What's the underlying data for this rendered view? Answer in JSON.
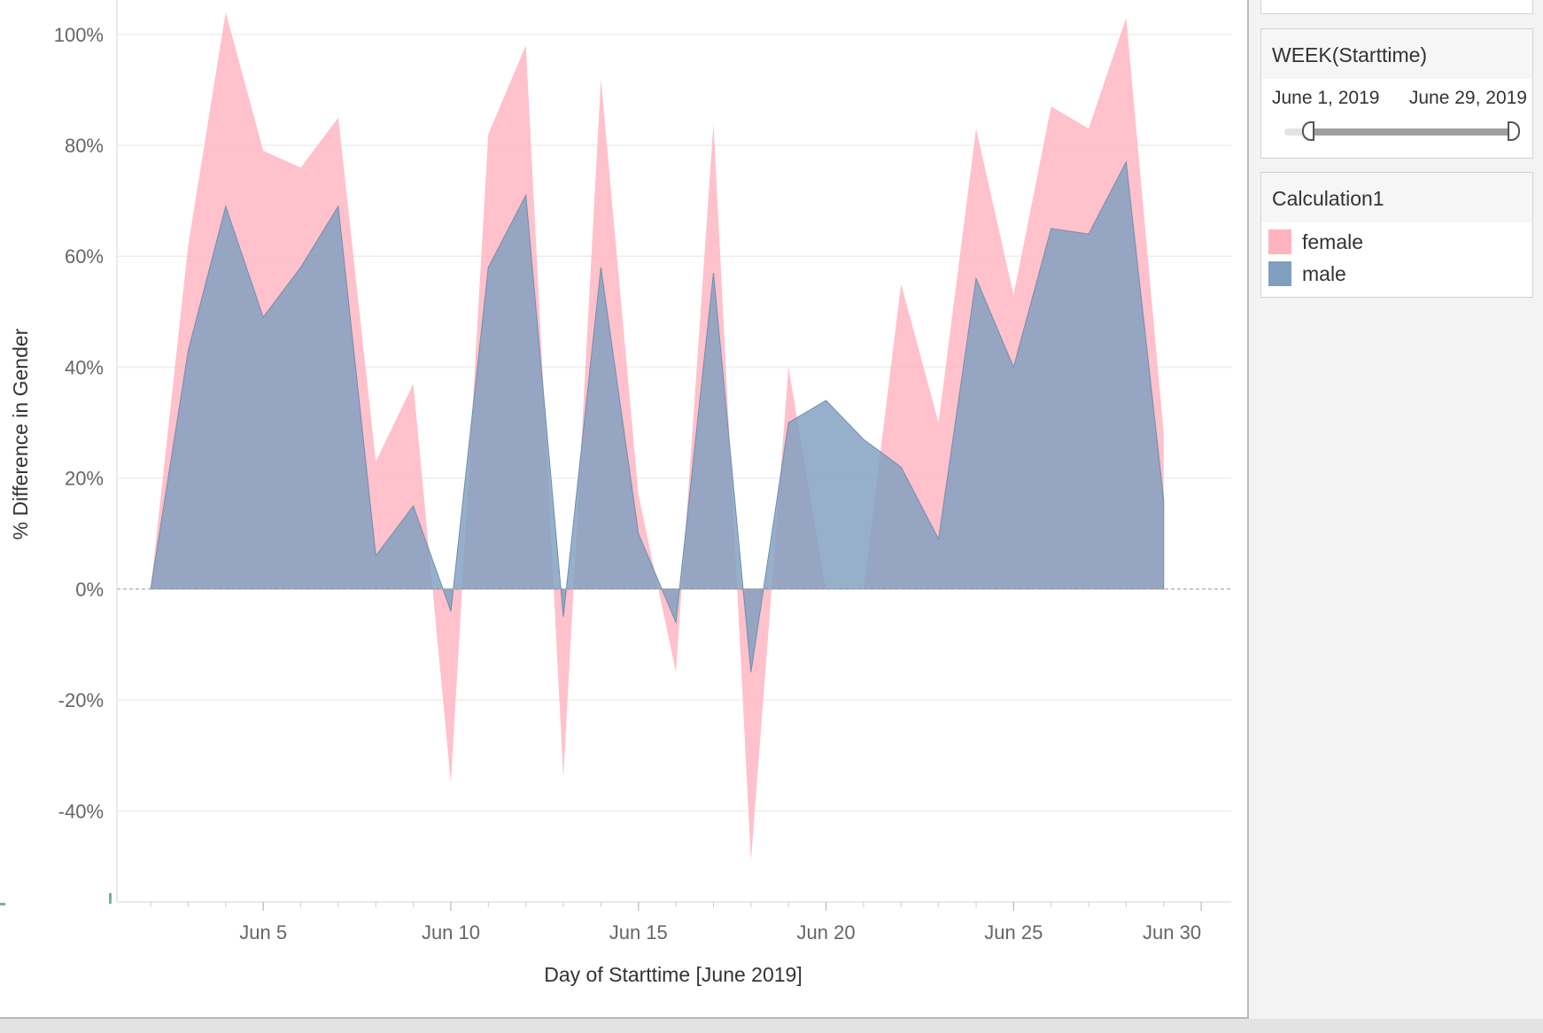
{
  "colors": {
    "female": "#ffb3bf",
    "male": "#7f9fbf",
    "male_stroke": "#6f8fae",
    "gridline": "#eeeeee",
    "zero_line": "#aaaaaa",
    "axis_text": "#666666",
    "title_text": "#333333"
  },
  "filter": {
    "title": "WEEK(Starttime)",
    "range_start": "June 1, 2019",
    "range_end": "June 29, 2019"
  },
  "legend": {
    "title": "Calculation1",
    "items": [
      {
        "label": "female",
        "color": "#ffb3bf"
      },
      {
        "label": "male",
        "color": "#7f9fbf"
      }
    ]
  },
  "chart_data": {
    "type": "area",
    "xlabel": "Day of Starttime [June 2019]",
    "ylabel": "% Difference in Gender",
    "x_ticks": [
      {
        "day": 5,
        "label": "Jun 5"
      },
      {
        "day": 10,
        "label": "Jun 10"
      },
      {
        "day": 15,
        "label": "Jun 15"
      },
      {
        "day": 20,
        "label": "Jun 20"
      },
      {
        "day": 25,
        "label": "Jun 25"
      },
      {
        "day": 30,
        "label": "Jun 30"
      }
    ],
    "y_ticks": [
      {
        "value": 100,
        "label": "100%"
      },
      {
        "value": 80,
        "label": "80%"
      },
      {
        "value": 60,
        "label": "60%"
      },
      {
        "value": 40,
        "label": "40%"
      },
      {
        "value": 20,
        "label": "20%"
      },
      {
        "value": 0,
        "label": "0%"
      },
      {
        "value": -20,
        "label": "-20%"
      },
      {
        "value": -40,
        "label": "-40%"
      }
    ],
    "ylim": [
      -56.4,
      106.2
    ],
    "xlim": [
      1.1,
      30.8
    ],
    "grid": true,
    "legend_position": "right",
    "series": [
      {
        "name": "female",
        "color": "#ffb3bf",
        "days": [
          2,
          3,
          4,
          5,
          6,
          7,
          8,
          9,
          10,
          11,
          12,
          13,
          14,
          15,
          16,
          17,
          18,
          19,
          20,
          21,
          22,
          23,
          24,
          25,
          26,
          27,
          28,
          29
        ],
        "values": [
          0,
          62,
          104,
          79,
          76,
          85,
          23,
          37,
          -35,
          82,
          98,
          -34,
          92,
          17,
          -15,
          84,
          -49,
          40,
          0,
          0,
          55,
          30,
          83,
          53,
          87,
          83,
          103,
          28
        ]
      },
      {
        "name": "male",
        "color": "#7f9fbf",
        "days": [
          2,
          3,
          4,
          5,
          6,
          7,
          8,
          9,
          10,
          11,
          12,
          13,
          14,
          15,
          16,
          17,
          18,
          19,
          20,
          21,
          22,
          23,
          24,
          25,
          26,
          27,
          28,
          29
        ],
        "values": [
          0,
          43,
          69,
          49,
          58,
          69,
          6,
          15,
          -4,
          58,
          71,
          -5,
          58,
          10,
          -6,
          57,
          -15,
          30,
          34,
          27,
          22,
          9,
          56,
          40,
          65,
          64,
          77,
          16
        ]
      }
    ]
  }
}
